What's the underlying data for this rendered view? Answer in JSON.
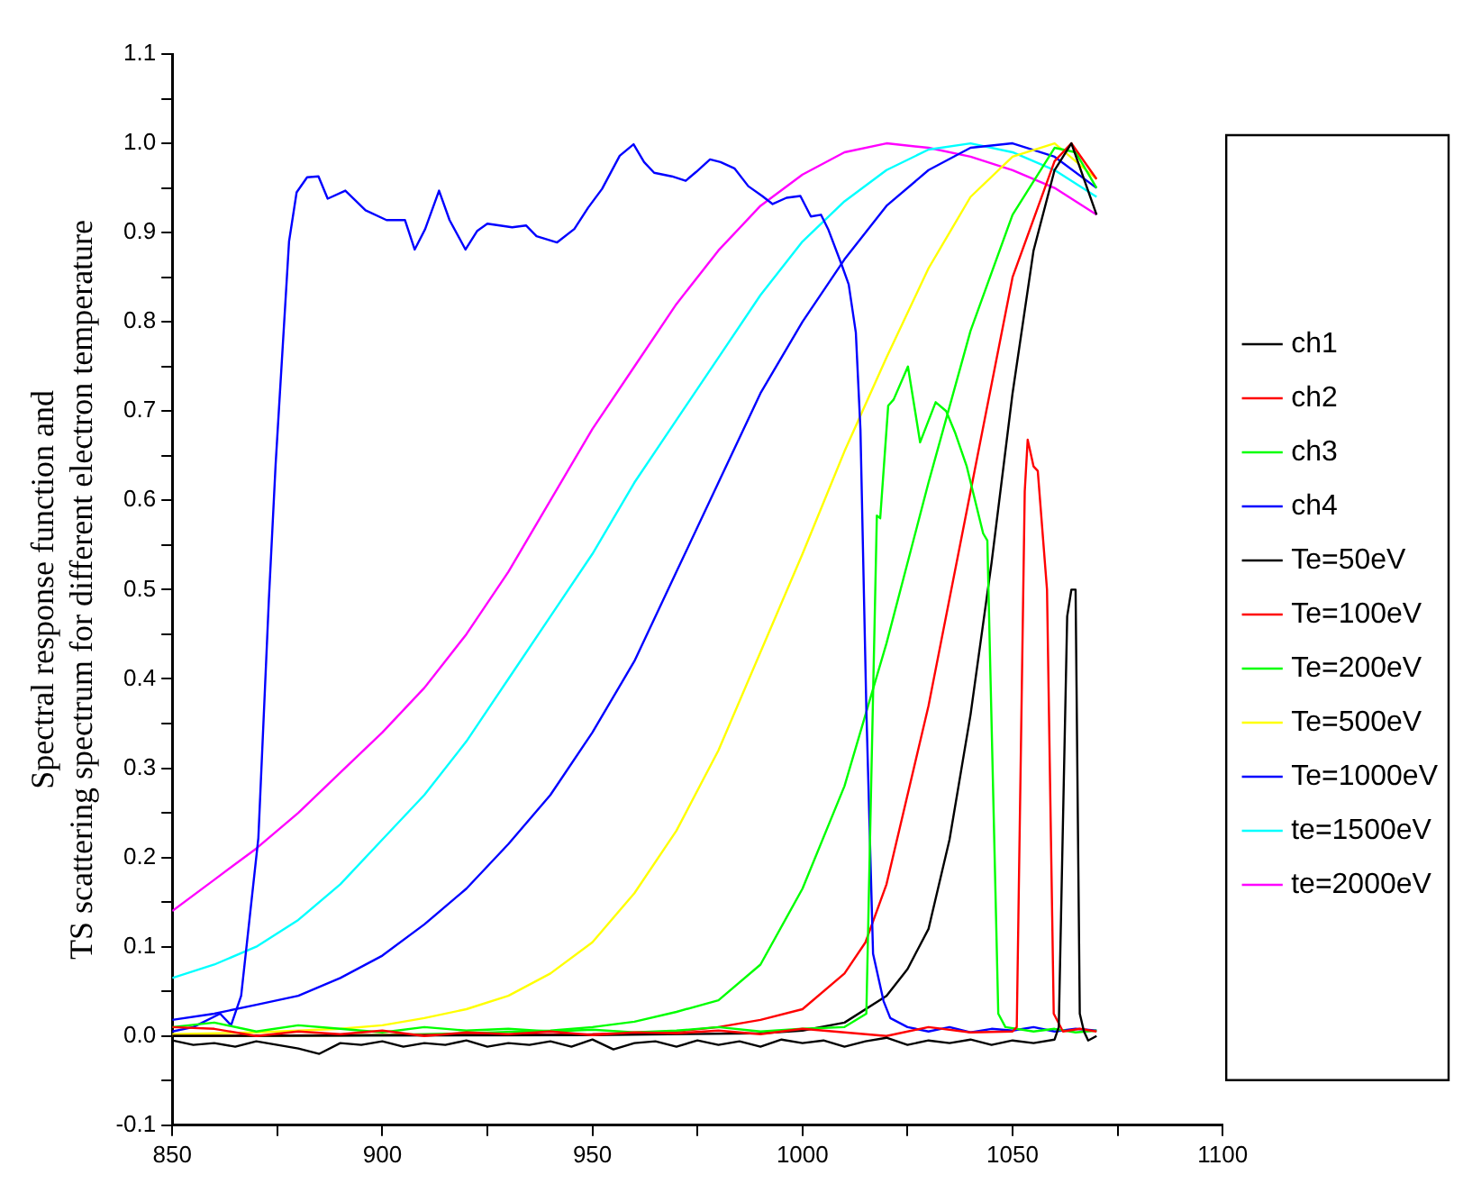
{
  "chart_data": {
    "type": "line",
    "ylabel": "Spectral response function and\nTS scattering spectrum for different electron temperature",
    "xlim": [
      850,
      1100
    ],
    "xticks": [
      850,
      {
        "value": 875,
        "label": null
      },
      900,
      {
        "value": 925,
        "label": null
      },
      950,
      {
        "value": 975,
        "label": null
      },
      1000,
      {
        "value": 1025,
        "label": null
      },
      1050,
      {
        "value": 1075,
        "label": null
      },
      1100
    ],
    "ylim": [
      -0.1,
      1.1
    ],
    "yticks": [
      -0.1,
      {
        "value": -0.05,
        "label": null
      },
      {
        "value": 0,
        "label": "0.0"
      },
      {
        "value": 0.05,
        "label": null
      },
      0.1,
      {
        "value": 0.15,
        "label": null
      },
      0.2,
      {
        "value": 0.25,
        "label": null
      },
      0.3,
      {
        "value": 0.35,
        "label": null
      },
      0.4,
      {
        "value": 0.45,
        "label": null
      },
      0.5,
      {
        "value": 0.55,
        "label": null
      },
      0.6,
      {
        "value": 0.65,
        "label": null
      },
      0.7,
      {
        "value": 0.75,
        "label": null
      },
      0.8,
      {
        "value": 0.85,
        "label": null
      },
      0.9,
      {
        "value": 0.95,
        "label": null
      },
      {
        "value": 1,
        "label": "1.0"
      },
      {
        "value": 1.05,
        "label": null
      },
      1.1
    ],
    "grid": false,
    "legend": "right",
    "marker": "none",
    "line_style": "solid",
    "series": [
      {
        "name": "ch1",
        "color": "#000000",
        "x": [
          850,
          855,
          860,
          865,
          870,
          875,
          880,
          885,
          890,
          895,
          900,
          905,
          910,
          915,
          920,
          925,
          930,
          935,
          940,
          945,
          950,
          955,
          960,
          965,
          970,
          975,
          980,
          985,
          990,
          995,
          1000,
          1005,
          1010,
          1015,
          1020,
          1025,
          1030,
          1035,
          1040,
          1045,
          1050,
          1055,
          1060,
          1061,
          1063,
          1064,
          1065,
          1066,
          1067,
          1068,
          1070
        ],
        "values": [
          -0.005,
          -0.01,
          -0.008,
          -0.012,
          -0.006,
          -0.01,
          -0.014,
          -0.02,
          -0.008,
          -0.01,
          -0.006,
          -0.012,
          -0.008,
          -0.01,
          -0.005,
          -0.012,
          -0.008,
          -0.01,
          -0.006,
          -0.012,
          -0.004,
          -0.015,
          -0.008,
          -0.006,
          -0.012,
          -0.005,
          -0.01,
          -0.006,
          -0.012,
          -0.004,
          -0.008,
          -0.005,
          -0.012,
          -0.006,
          -0.002,
          -0.01,
          -0.005,
          -0.008,
          -0.004,
          -0.01,
          -0.005,
          -0.008,
          -0.004,
          0.01,
          0.47,
          0.5,
          0.5,
          0.025,
          0.005,
          -0.005,
          0.0
        ]
      },
      {
        "name": "ch2",
        "color": "#ff0000",
        "x": [
          850,
          860,
          870,
          880,
          890,
          900,
          910,
          920,
          930,
          940,
          950,
          960,
          970,
          980,
          990,
          1000,
          1010,
          1020,
          1030,
          1040,
          1050,
          1051,
          1052.9,
          1053.6,
          1055,
          1056,
          1058.2,
          1059.8,
          1062,
          1066,
          1070
        ],
        "values": [
          0.01,
          0.008,
          0.0,
          0.005,
          0.002,
          0.006,
          0.0,
          0.004,
          0.002,
          0.005,
          0.001,
          0.004,
          0.003,
          0.006,
          0.002,
          0.008,
          0.004,
          0.0,
          0.01,
          0.004,
          0.005,
          0.01,
          0.61,
          0.668,
          0.638,
          0.633,
          0.5,
          0.025,
          0.005,
          0.008,
          0.005
        ]
      },
      {
        "name": "ch3",
        "color": "#00ff00",
        "x": [
          850,
          860,
          870,
          880,
          890,
          900,
          910,
          920,
          930,
          940,
          950,
          960,
          970,
          980,
          990,
          1000,
          1010,
          1015.2,
          1017.7,
          1018.5,
          1020.4,
          1021.7,
          1025.1,
          1028,
          1031.7,
          1034.2,
          1036.4,
          1039.1,
          1043,
          1044,
          1046.6,
          1048.3,
          1055,
          1060,
          1065,
          1070
        ],
        "values": [
          0.01,
          0.015,
          0.005,
          0.012,
          0.008,
          0.004,
          0.01,
          0.006,
          0.008,
          0.005,
          0.007,
          0.004,
          0.006,
          0.01,
          0.005,
          0.008,
          0.01,
          0.025,
          0.583,
          0.58,
          0.706,
          0.713,
          0.75,
          0.665,
          0.71,
          0.7,
          0.675,
          0.638,
          0.563,
          0.555,
          0.025,
          0.01,
          0.005,
          0.008,
          0.004,
          0.006
        ]
      },
      {
        "name": "ch4",
        "color": "#0000ff",
        "x": [
          850,
          855,
          861.4,
          864,
          866.4,
          870.5,
          873,
          874.6,
          877.8,
          879.6,
          882.1,
          884.8,
          887,
          891.2,
          896,
          901,
          905.4,
          907.7,
          910.2,
          913.5,
          916,
          919.8,
          922.6,
          925,
          930.9,
          934.2,
          936.7,
          941.6,
          945.7,
          949,
          952.3,
          956.5,
          959.8,
          962.3,
          964.7,
          968.9,
          972.2,
          974.7,
          978,
          980.5,
          983.8,
          987.1,
          990.4,
          992.9,
          996.2,
          999.5,
          1002,
          1004.4,
          1006.1,
          1009.4,
          1011,
          1012.7,
          1013.8,
          1015.2,
          1016.8,
          1019.3,
          1020.9,
          1025,
          1030,
          1035,
          1040,
          1045,
          1050,
          1055,
          1060,
          1065,
          1070
        ],
        "values": [
          0.005,
          0.01,
          0.025,
          0.012,
          0.045,
          0.222,
          0.489,
          0.64,
          0.89,
          0.945,
          0.962,
          0.963,
          0.938,
          0.947,
          0.925,
          0.914,
          0.914,
          0.881,
          0.904,
          0.947,
          0.914,
          0.881,
          0.902,
          0.91,
          0.906,
          0.908,
          0.896,
          0.889,
          0.904,
          0.928,
          0.949,
          0.986,
          0.999,
          0.979,
          0.967,
          0.963,
          0.958,
          0.968,
          0.982,
          0.979,
          0.972,
          0.952,
          0.941,
          0.932,
          0.939,
          0.941,
          0.918,
          0.92,
          0.904,
          0.863,
          0.842,
          0.788,
          0.679,
          0.366,
          0.092,
          0.039,
          0.02,
          0.01,
          0.005,
          0.01,
          0.004,
          0.008,
          0.006,
          0.01,
          0.005,
          0.008,
          0.006
        ]
      },
      {
        "name": "Te=50eV",
        "color": "#000000",
        "x": [
          850,
          950,
          990,
          1000,
          1010,
          1020,
          1025,
          1030,
          1035,
          1040,
          1045,
          1050,
          1055,
          1060,
          1064,
          1070
        ],
        "values": [
          0,
          0.001,
          0.003,
          0.006,
          0.015,
          0.045,
          0.075,
          0.12,
          0.22,
          0.36,
          0.53,
          0.72,
          0.88,
          0.97,
          1.0,
          0.92
        ]
      },
      {
        "name": "Te=100eV",
        "color": "#ff0000",
        "x": [
          850,
          950,
          970,
          980,
          990,
          1000,
          1010,
          1015,
          1020,
          1030,
          1040,
          1050,
          1060,
          1064,
          1070
        ],
        "values": [
          0,
          0.002,
          0.005,
          0.01,
          0.018,
          0.03,
          0.07,
          0.105,
          0.17,
          0.37,
          0.61,
          0.85,
          0.98,
          1.0,
          0.96
        ]
      },
      {
        "name": "Te=200eV",
        "color": "#00ff00",
        "x": [
          850,
          900,
          920,
          940,
          950,
          960,
          970,
          980,
          990,
          1000,
          1010,
          1020,
          1030,
          1040,
          1050,
          1060,
          1065,
          1070
        ],
        "values": [
          0,
          0.001,
          0.003,
          0.006,
          0.01,
          0.016,
          0.027,
          0.04,
          0.08,
          0.165,
          0.28,
          0.44,
          0.62,
          0.79,
          0.92,
          0.995,
          0.99,
          0.95
        ]
      },
      {
        "name": "Te=500eV",
        "color": "#ffff00",
        "x": [
          850,
          870,
          890,
          900,
          910,
          920,
          930,
          940,
          950,
          960,
          970,
          980,
          990,
          1000,
          1010,
          1020,
          1030,
          1040,
          1050,
          1060,
          1070
        ],
        "values": [
          0.002,
          0.004,
          0.008,
          0.012,
          0.02,
          0.03,
          0.045,
          0.07,
          0.105,
          0.16,
          0.23,
          0.32,
          0.43,
          0.54,
          0.655,
          0.76,
          0.86,
          0.94,
          0.985,
          1.0,
          0.96
        ]
      },
      {
        "name": "Te=1000eV",
        "color": "#0000ff",
        "x": [
          850,
          860,
          870,
          880,
          890,
          900,
          910,
          920,
          930,
          940,
          950,
          960,
          970,
          980,
          990,
          1000,
          1010,
          1020,
          1030,
          1040,
          1050,
          1060,
          1070
        ],
        "values": [
          0.018,
          0.025,
          0.035,
          0.045,
          0.065,
          0.09,
          0.125,
          0.165,
          0.215,
          0.27,
          0.34,
          0.42,
          0.52,
          0.62,
          0.72,
          0.8,
          0.87,
          0.93,
          0.97,
          0.995,
          1.0,
          0.985,
          0.95
        ]
      },
      {
        "name": "te=1500eV",
        "color": "#00ffff",
        "x": [
          850,
          860,
          870,
          880,
          890,
          900,
          910,
          920,
          930,
          940,
          950,
          960,
          970,
          980,
          990,
          1000,
          1010,
          1020,
          1030,
          1040,
          1050,
          1060,
          1070
        ],
        "values": [
          0.065,
          0.08,
          0.1,
          0.13,
          0.17,
          0.22,
          0.27,
          0.33,
          0.4,
          0.47,
          0.54,
          0.62,
          0.69,
          0.76,
          0.83,
          0.89,
          0.935,
          0.97,
          0.993,
          1.0,
          0.99,
          0.97,
          0.94
        ]
      },
      {
        "name": "te=2000eV",
        "color": "#ff00ff",
        "x": [
          850,
          860,
          870,
          880,
          890,
          900,
          910,
          920,
          930,
          940,
          950,
          960,
          970,
          980,
          990,
          1000,
          1010,
          1020,
          1030,
          1040,
          1050,
          1060,
          1070
        ],
        "values": [
          0.14,
          0.175,
          0.21,
          0.25,
          0.295,
          0.34,
          0.39,
          0.45,
          0.52,
          0.6,
          0.68,
          0.75,
          0.82,
          0.88,
          0.93,
          0.965,
          0.99,
          1.0,
          0.995,
          0.985,
          0.97,
          0.95,
          0.92
        ]
      }
    ]
  }
}
